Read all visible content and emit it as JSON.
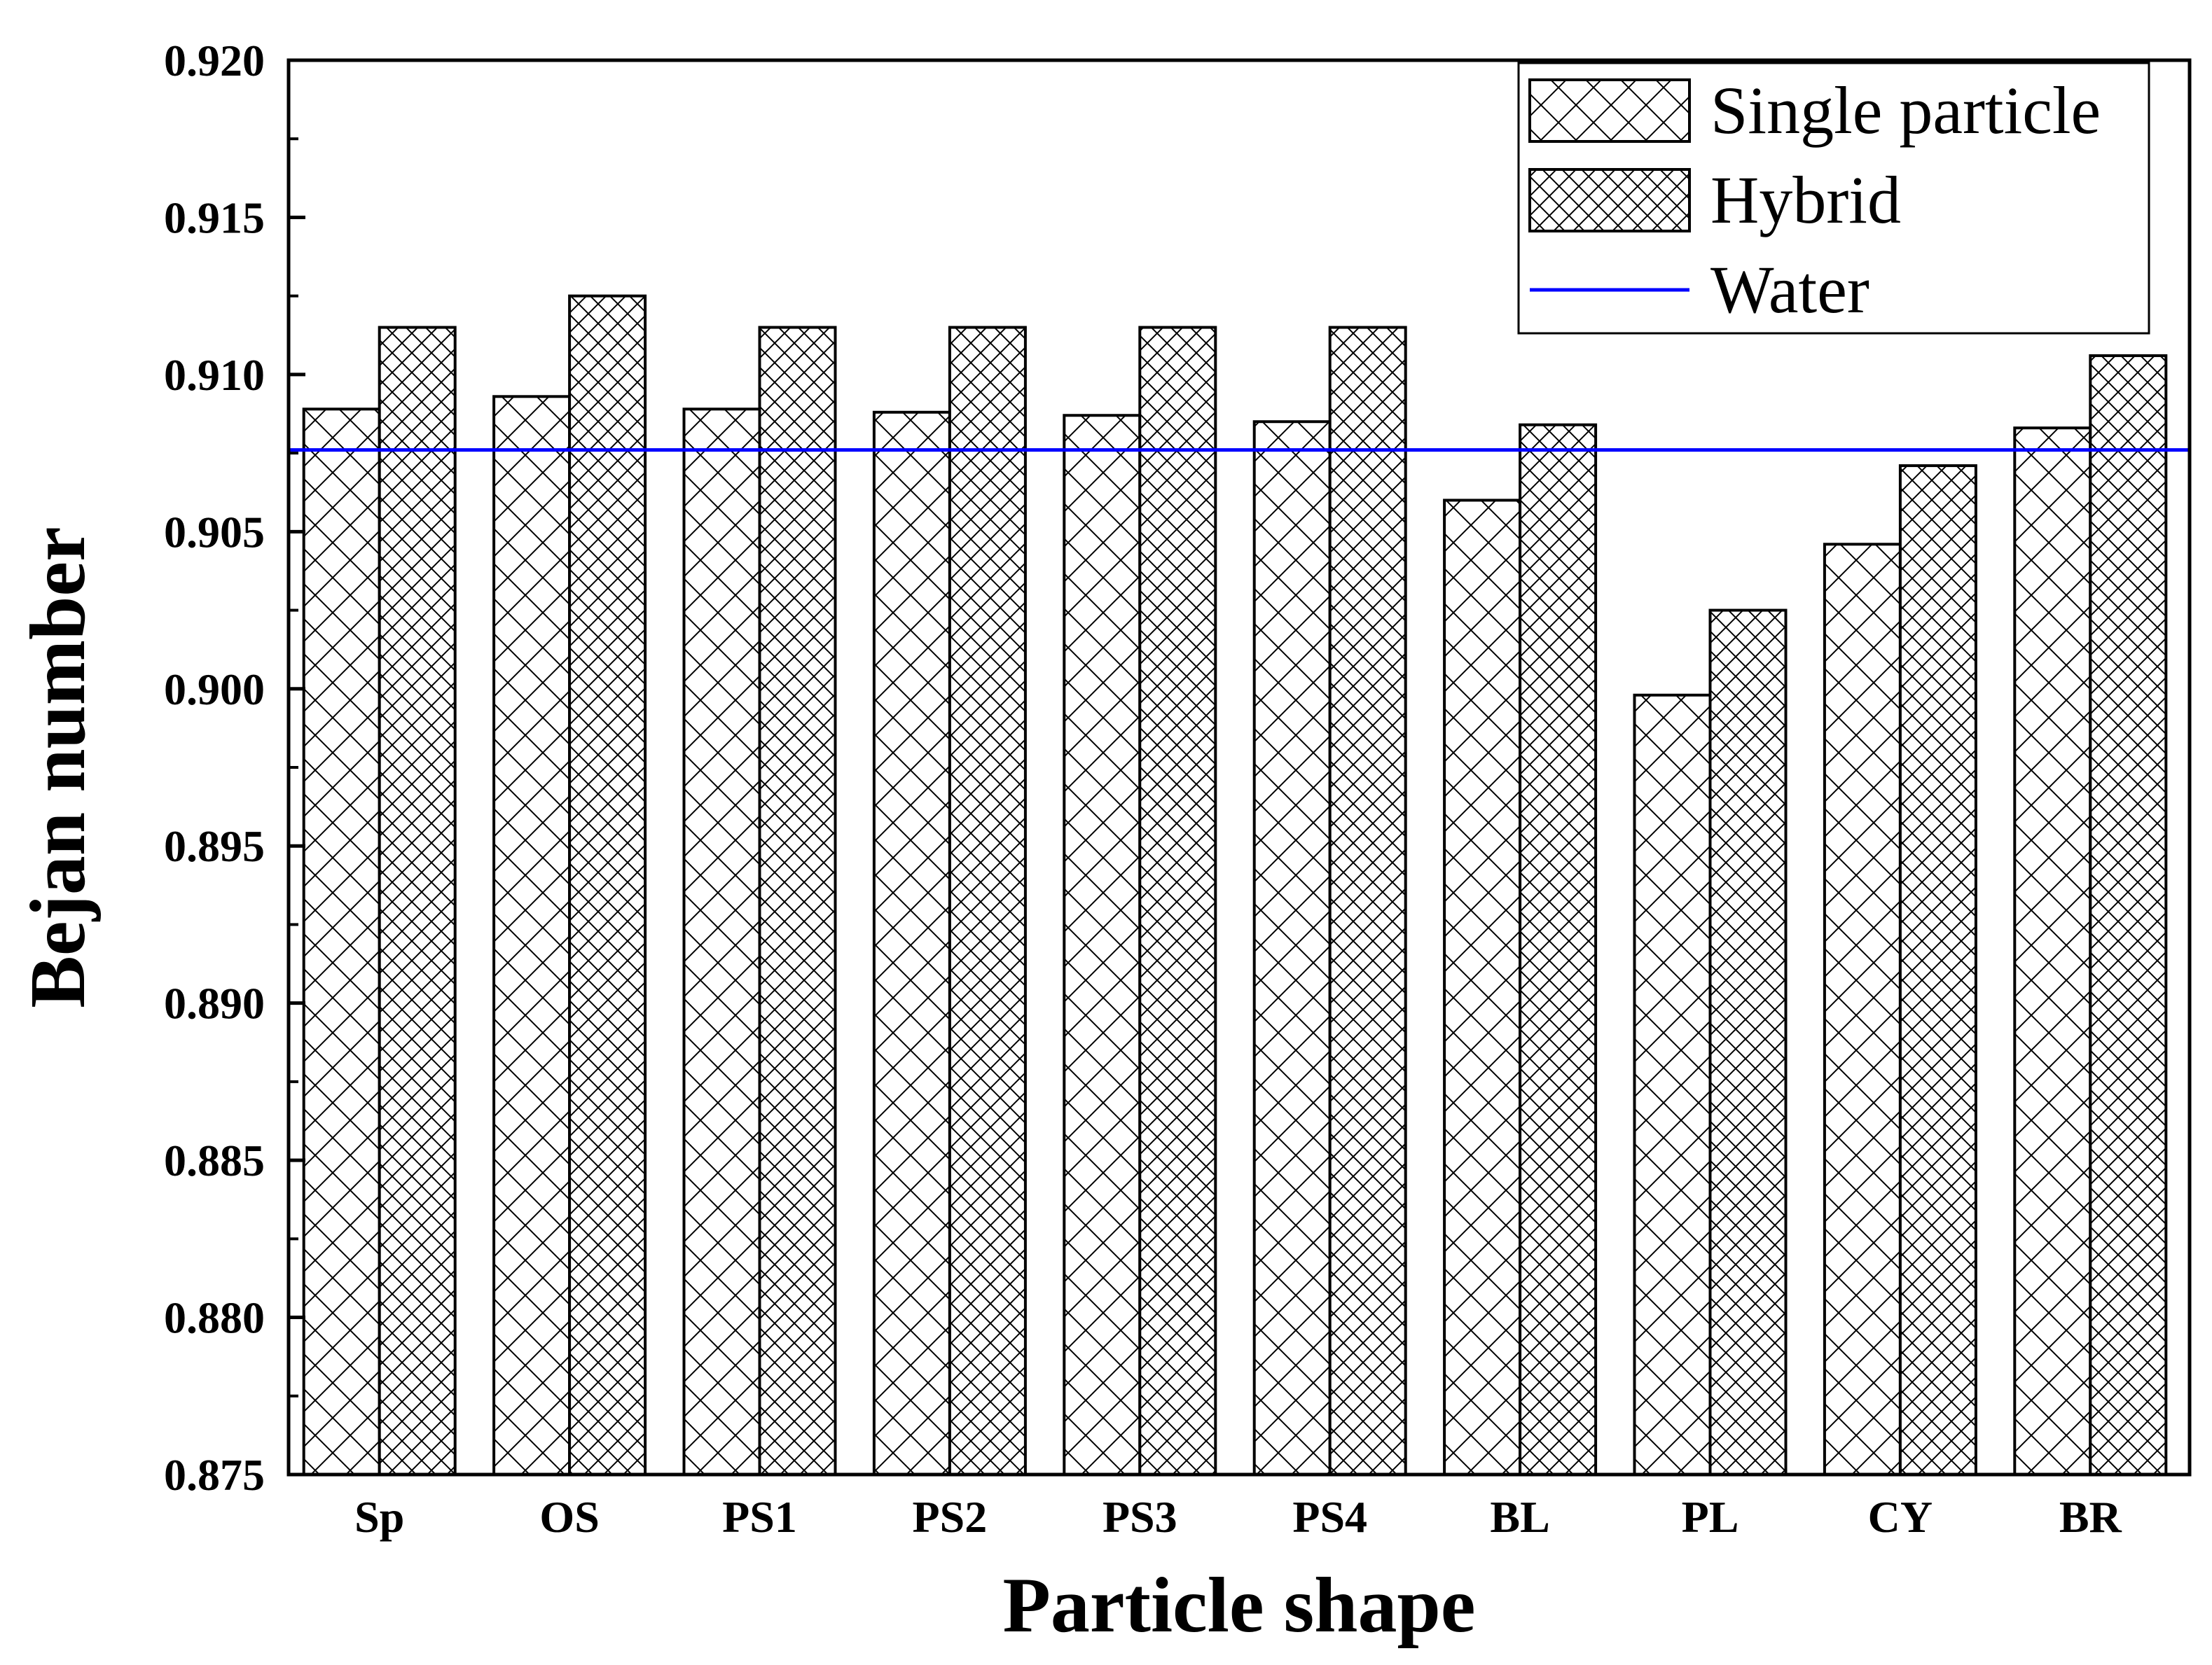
{
  "chart_data": {
    "type": "bar",
    "title": "",
    "xlabel": "Particle shape",
    "ylabel": "Bejan number",
    "categories": [
      "Sp",
      "OS",
      "PS1",
      "PS2",
      "PS3",
      "PS4",
      "BL",
      "PL",
      "CY",
      "BR"
    ],
    "series": [
      {
        "name": "Single particle",
        "values": [
          0.9089,
          0.9093,
          0.9089,
          0.9088,
          0.9087,
          0.9085,
          0.906,
          0.8998,
          0.9046,
          0.9083
        ]
      },
      {
        "name": "Hybrid",
        "values": [
          0.9115,
          0.9125,
          0.9115,
          0.9115,
          0.9115,
          0.9115,
          0.9084,
          0.9025,
          0.9071,
          0.9106
        ]
      }
    ],
    "reference_line": {
      "name": "Water",
      "value": 0.9076,
      "color": "#0000ff"
    },
    "ylim": [
      0.875,
      0.92
    ],
    "yticks": [
      "0.875",
      "0.880",
      "0.885",
      "0.890",
      "0.895",
      "0.900",
      "0.905",
      "0.910",
      "0.915",
      "0.920"
    ],
    "legend": {
      "position": "top-right",
      "items": [
        "Single particle",
        "Hybrid",
        "Water"
      ]
    },
    "grid": false
  }
}
